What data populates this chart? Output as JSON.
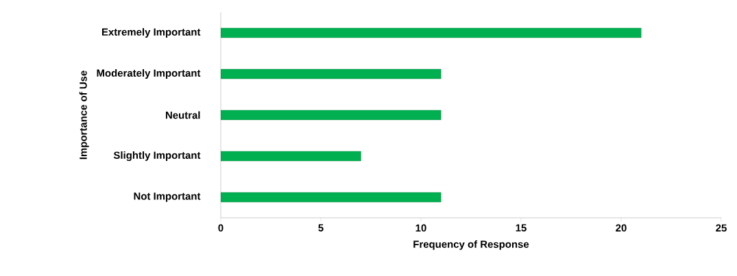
{
  "chart_data": {
    "type": "bar",
    "orientation": "horizontal",
    "xlabel": "Frequency of Response",
    "ylabel": "Importance of Use",
    "categories": [
      "Extremely Important",
      "Moderately Important",
      "Neutral",
      "Slightly Important",
      "Not Important"
    ],
    "values": [
      21,
      11,
      11,
      7,
      11
    ],
    "color": "#00b050",
    "xlim": [
      0,
      25
    ],
    "xticks": [
      0,
      5,
      10,
      15,
      20,
      25
    ]
  }
}
